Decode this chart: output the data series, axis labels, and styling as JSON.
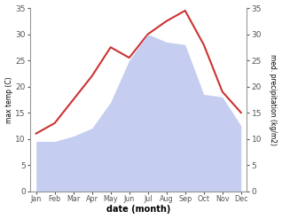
{
  "months": [
    "Jan",
    "Feb",
    "Mar",
    "Apr",
    "May",
    "Jun",
    "Jul",
    "Aug",
    "Sep",
    "Oct",
    "Nov",
    "Dec"
  ],
  "temp": [
    11.0,
    13.0,
    17.5,
    22.0,
    27.5,
    25.5,
    30.0,
    32.5,
    34.5,
    28.0,
    19.0,
    15.0
  ],
  "precip": [
    9.5,
    9.5,
    10.5,
    12.0,
    17.0,
    25.0,
    30.0,
    28.5,
    28.0,
    18.5,
    18.0,
    12.5
  ],
  "temp_color": "#cc3333",
  "precip_color": "#c5cef0",
  "background": "#ffffff",
  "ylim_left": [
    0,
    35
  ],
  "ylim_right": [
    0,
    35
  ],
  "xlabel": "date (month)",
  "ylabel_left": "max temp (C)",
  "ylabel_right": "med. precipitation (kg/m2)"
}
